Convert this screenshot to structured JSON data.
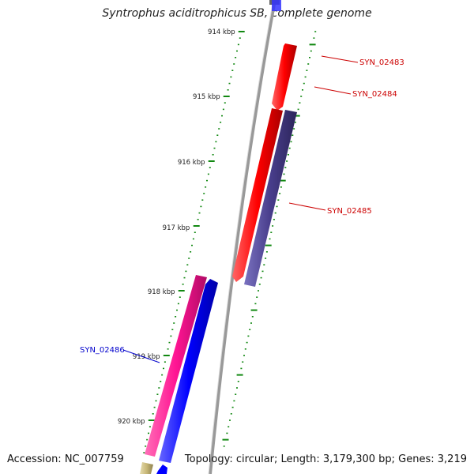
{
  "title": "Syntrophus aciditrophicus SB, complete genome",
  "footer": {
    "accession": "Accession: NC_007759",
    "topology": "Topology: circular; Length: 3,179,300 bp; Genes: 3,219"
  },
  "scale_labels": [
    "914 kbp",
    "915 kbp",
    "916 kbp",
    "917 kbp",
    "918 kbp",
    "919 kbp",
    "920 kbp"
  ],
  "genes": [
    {
      "label": "SYN_02483",
      "strand": "forward",
      "color": "#ff0000"
    },
    {
      "label": "SYN_02484",
      "strand": "forward",
      "color": "#ff0000"
    },
    {
      "label": "SYN_02485",
      "strand": "forward",
      "color": "#483d8b"
    },
    {
      "label": "SYN_02486",
      "strand": "reverse",
      "color": "#ff1493"
    }
  ],
  "colors": {
    "backbone": "#888888",
    "tick": "#118811",
    "forward_label": "#cc0000",
    "reverse_label": "#0000cc",
    "blue_gene": "#0000ff",
    "olive_gene": "#c8b878"
  }
}
